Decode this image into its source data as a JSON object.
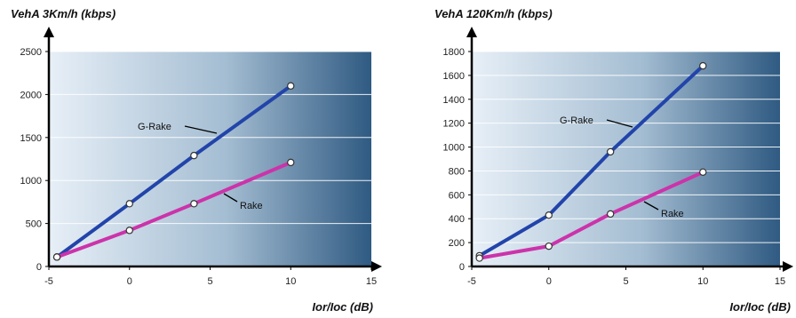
{
  "chart_data": [
    {
      "type": "line",
      "ylabel": "VehA 3Km/h (kbps)",
      "xlabel": "Ior/Ioc (dB)",
      "xlim": [
        -5,
        15
      ],
      "ylim": [
        0,
        2500
      ],
      "xticks": [
        -5,
        0,
        5,
        10,
        15
      ],
      "yticks": [
        0,
        500,
        1000,
        1500,
        2000,
        2500
      ],
      "grid": true,
      "series": [
        {
          "name": "G-Rake",
          "color": "#2244aa",
          "x": [
            -4.5,
            0,
            4,
            10
          ],
          "y": [
            110,
            730,
            1290,
            2100
          ]
        },
        {
          "name": "Rake",
          "color": "#cc33aa",
          "x": [
            -4.5,
            0,
            4,
            10
          ],
          "y": [
            110,
            420,
            730,
            1210
          ]
        }
      ]
    },
    {
      "type": "line",
      "ylabel": "VehA 120Km/h (kbps)",
      "xlabel": "Ior/Ioc (dB)",
      "xlim": [
        -5,
        15
      ],
      "ylim": [
        0,
        1800
      ],
      "xticks": [
        -5,
        0,
        5,
        10,
        15
      ],
      "yticks": [
        0,
        200,
        400,
        600,
        800,
        1000,
        1200,
        1400,
        1600,
        1800
      ],
      "grid": true,
      "series": [
        {
          "name": "G-Rake",
          "color": "#2244aa",
          "x": [
            -4.5,
            0,
            4,
            10
          ],
          "y": [
            90,
            430,
            960,
            1680
          ]
        },
        {
          "name": "Rake",
          "color": "#cc33aa",
          "x": [
            -4.5,
            0,
            4,
            10
          ],
          "y": [
            70,
            170,
            440,
            790
          ]
        }
      ]
    }
  ]
}
